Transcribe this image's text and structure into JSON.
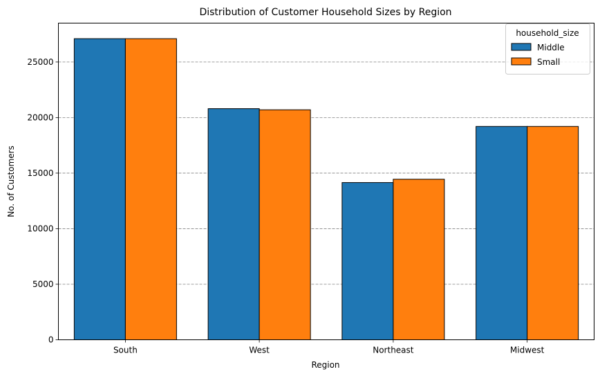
{
  "chart_data": {
    "type": "bar",
    "title": "Distribution of Customer Household Sizes by Region",
    "xlabel": "Region",
    "ylabel": "No. of Customers",
    "categories": [
      "South",
      "West",
      "Northeast",
      "Midwest"
    ],
    "series": [
      {
        "name": "Middle",
        "values": [
          27100,
          20800,
          14150,
          19200
        ],
        "color": "#1f77b4"
      },
      {
        "name": "Small",
        "values": [
          27100,
          20700,
          14450,
          19200
        ],
        "color": "#ff7f0e"
      }
    ],
    "ylim": [
      0,
      28500
    ],
    "yticks": [
      "0",
      "5000",
      "10000",
      "15000",
      "20000",
      "25000"
    ],
    "grid": "y-dashed",
    "legend": {
      "title": "household_size",
      "placement": "top-right"
    }
  }
}
